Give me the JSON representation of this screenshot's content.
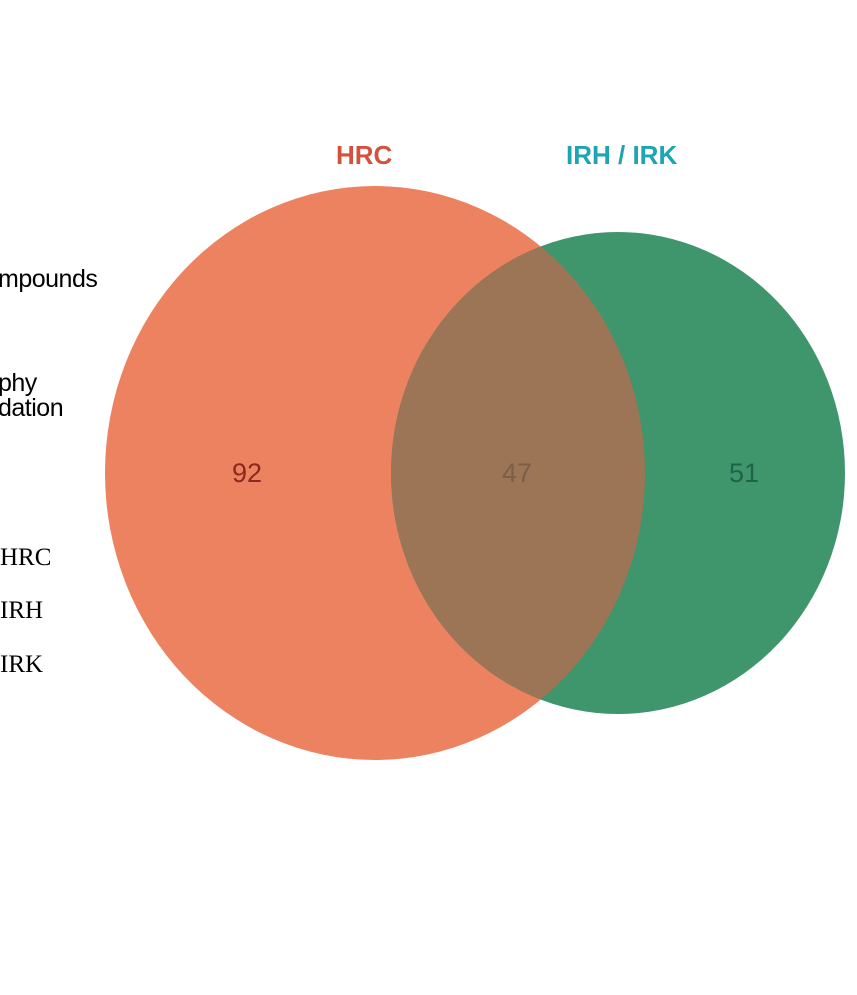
{
  "sets": [
    {
      "name": "HRC",
      "color": "#d2523e",
      "fill": "#ec825f",
      "count": "92",
      "count_color": "#8a2a1e"
    },
    {
      "name": "IRH / IRK",
      "color": "#1ea5b3",
      "fill": "#3f956c",
      "count": "51",
      "count_color": "#1d6548"
    }
  ],
  "intersection": {
    "count": "47",
    "fill": "#9c7556",
    "count_color": "#7a5f4a"
  },
  "side_labels": {
    "line1": "mpounds",
    "line2": "phy",
    "line3": "dation",
    "legend": [
      "HRC",
      "IRH",
      "IRK"
    ]
  }
}
